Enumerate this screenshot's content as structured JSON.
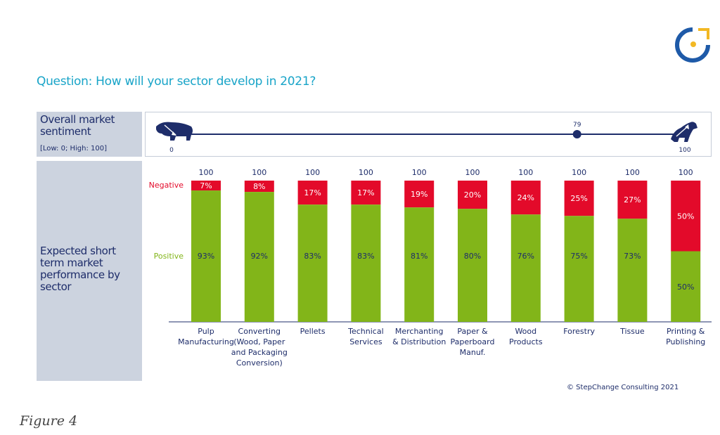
{
  "question": "Question: How will your sector develop in 2021?",
  "sentiment": {
    "title": "Overall market sentiment",
    "range_note": "[Low: 0; High: 100]",
    "value": 79,
    "value_label": "79",
    "min_label": "0",
    "max_label": "100",
    "bear_icon": "bear-icon",
    "bull_icon": "bull-icon"
  },
  "performance_title": "Expected short term market performance by sector",
  "row_labels": {
    "negative": "Negative",
    "positive": "Positive"
  },
  "copyright": "© StepChange Consulting 2021",
  "figure_caption": "Figure 4",
  "colors": {
    "positive": "#82b519",
    "negative": "#e30a2a",
    "navy": "#1e2d6a",
    "accent": "#18a4c8",
    "logo_yellow": "#f2b824"
  },
  "chart_data": {
    "type": "bar",
    "stacked": true,
    "categories": [
      "Pulp Manufacturing",
      "Converting (Wood, Paper and Packaging Conversion)",
      "Pellets",
      "Technical Services",
      "Merchanting & Distribution",
      "Paper & Paperboard Manuf.",
      "Wood Products",
      "Forestry",
      "Tissue",
      "Printing & Publishing"
    ],
    "category_lines": [
      "Pulp\nManufacturing",
      "Converting\n(Wood, Paper\nand Packaging\nConversion)",
      "Pellets",
      "Technical\nServices",
      "Merchanting\n& Distribution",
      "Paper &\nPaperboard\nManuf.",
      "Wood\nProducts",
      "Forestry",
      "Tissue",
      "Printing &\nPublishing"
    ],
    "totals": [
      100,
      100,
      100,
      100,
      100,
      100,
      100,
      100,
      100,
      100
    ],
    "series": [
      {
        "name": "Positive",
        "color": "#82b519",
        "values": [
          93,
          92,
          83,
          83,
          81,
          80,
          76,
          75,
          73,
          50
        ]
      },
      {
        "name": "Negative",
        "color": "#e30a2a",
        "values": [
          7,
          8,
          17,
          17,
          19,
          20,
          24,
          25,
          27,
          50
        ]
      }
    ],
    "ylim": [
      0,
      100
    ]
  }
}
